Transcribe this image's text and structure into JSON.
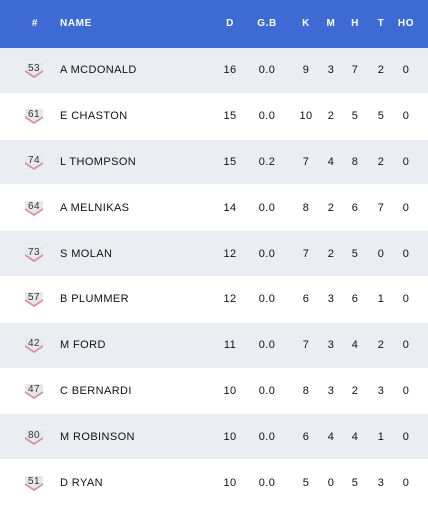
{
  "header": {
    "num": "#",
    "name": "NAME",
    "d": "D",
    "gb": "G.B",
    "k": "K",
    "m": "M",
    "h": "H",
    "t": "T",
    "ho": "HO"
  },
  "colors": {
    "header_bg": "#3e6ad3",
    "row_alt": "#eaedf1",
    "jersey_accent": "#d98a9a"
  },
  "players": [
    {
      "number": "53",
      "name": "A MCDONALD",
      "d": "16",
      "gb": "0.0",
      "k": "9",
      "m": "3",
      "h": "7",
      "t": "2",
      "ho": "0"
    },
    {
      "number": "61",
      "name": "E CHASTON",
      "d": "15",
      "gb": "0.0",
      "k": "10",
      "m": "2",
      "h": "5",
      "t": "5",
      "ho": "0"
    },
    {
      "number": "74",
      "name": "L THOMPSON",
      "d": "15",
      "gb": "0.2",
      "k": "7",
      "m": "4",
      "h": "8",
      "t": "2",
      "ho": "0"
    },
    {
      "number": "64",
      "name": "A MELNIKAS",
      "d": "14",
      "gb": "0.0",
      "k": "8",
      "m": "2",
      "h": "6",
      "t": "7",
      "ho": "0"
    },
    {
      "number": "73",
      "name": "S MOLAN",
      "d": "12",
      "gb": "0.0",
      "k": "7",
      "m": "2",
      "h": "5",
      "t": "0",
      "ho": "0"
    },
    {
      "number": "57",
      "name": "B PLUMMER",
      "d": "12",
      "gb": "0.0",
      "k": "6",
      "m": "3",
      "h": "6",
      "t": "1",
      "ho": "0"
    },
    {
      "number": "42",
      "name": "M FORD",
      "d": "11",
      "gb": "0.0",
      "k": "7",
      "m": "3",
      "h": "4",
      "t": "2",
      "ho": "0"
    },
    {
      "number": "47",
      "name": "C BERNARDI",
      "d": "10",
      "gb": "0.0",
      "k": "8",
      "m": "3",
      "h": "2",
      "t": "3",
      "ho": "0"
    },
    {
      "number": "80",
      "name": "M ROBINSON",
      "d": "10",
      "gb": "0.0",
      "k": "6",
      "m": "4",
      "h": "4",
      "t": "1",
      "ho": "0"
    },
    {
      "number": "51",
      "name": "D RYAN",
      "d": "10",
      "gb": "0.0",
      "k": "5",
      "m": "0",
      "h": "5",
      "t": "3",
      "ho": "0"
    }
  ]
}
